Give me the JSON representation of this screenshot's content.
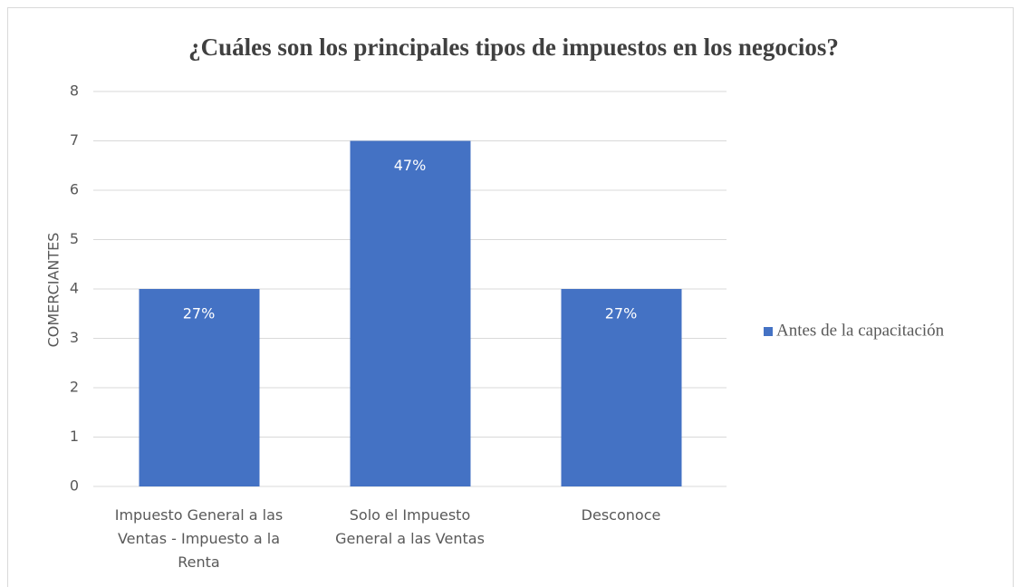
{
  "chart_data": {
    "type": "bar",
    "title": "¿Cuáles son los principales tipos de impuestos en los negocios?",
    "ylabel": "COMERCIANTES",
    "categories": [
      "Impuesto General a las Ventas - Impuesto a la Renta",
      "Solo el Impuesto General a las Ventas",
      "Desconoce"
    ],
    "series": [
      {
        "name": "Antes de la capacitación",
        "color": "#4472c4",
        "values": [
          4,
          7,
          4
        ],
        "value_labels": [
          "27%",
          "47%",
          "27%"
        ]
      }
    ],
    "ylim": [
      0,
      8
    ],
    "yticks": [
      0,
      1,
      2,
      3,
      4,
      5,
      6,
      7,
      8
    ],
    "grid": true,
    "legend": "right"
  }
}
